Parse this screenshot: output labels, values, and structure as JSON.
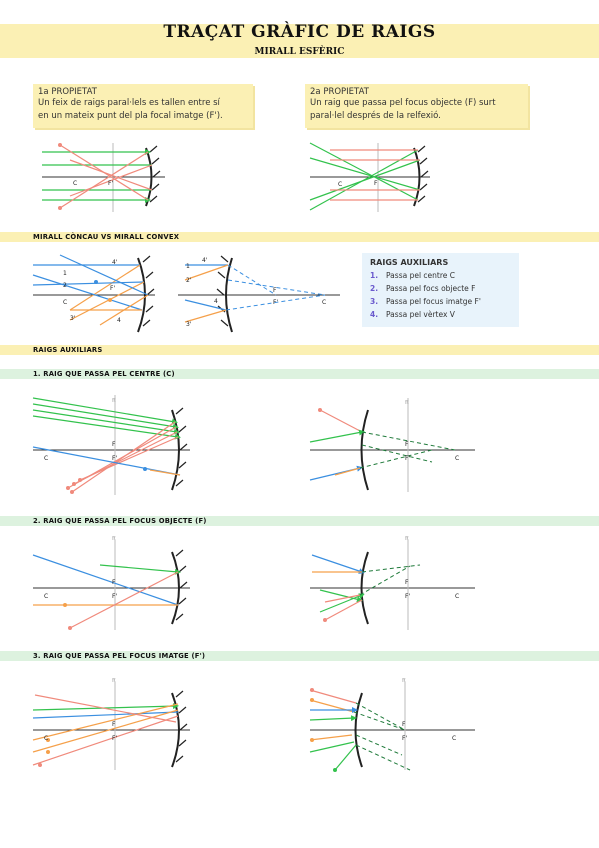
{
  "header": {
    "title": "TRAÇAT GRÀFIC DE RAIGS",
    "subtitle": "MIRALL ESFÈRIC"
  },
  "properties": [
    {
      "heading": "1a PROPIETAT",
      "line1": "Un feix de raigs paral·lels es tallen entre sí",
      "line2": "en un mateix punt del pla focal imatge (F')."
    },
    {
      "heading": "2a PROPIETAT",
      "line1": "Un raig que passa pel focus objecte (F) surt",
      "line2": "paral·lel després de la relfexió."
    }
  ],
  "sections": {
    "concau_convex": "MIRALL CÒNCAU VS MIRALL CONVEX",
    "raigs_auxiliars": "RAIGS AUXILIARS",
    "step1": "1.   RAIG QUE PASSA PEL CENTRE (C)",
    "step2": "2.  RAIG QUE PASSA PEL FOCUS OBJECTE (F)",
    "step3": "3.  RAIG QUE PASSA PEL FOCUS IMATGE (F')"
  },
  "aux_box": {
    "heading": "RAIGS AUXILIARS",
    "items": [
      {
        "num": "1.",
        "text": "Passa pel centre C"
      },
      {
        "num": "2.",
        "text": "Passa pel focs objecte F"
      },
      {
        "num": "3.",
        "text": "Passa pel focus imatge F'"
      },
      {
        "num": "4.",
        "text": "Passa pel vèrtex V"
      }
    ]
  },
  "diagram_labels": {
    "C": "C",
    "F": "F",
    "Fp": "F'",
    "pf": "π",
    "n1": "1",
    "n2": "2",
    "n3": "3",
    "n4": "4",
    "n1p": "1'",
    "n2p": "2'",
    "n3p": "3'",
    "n4p": "4'"
  },
  "colors": {
    "green": "#33c24d",
    "red": "#f08a7c",
    "orange": "#f5a04a",
    "blue": "#3b8fe0",
    "darkgreen": "#1f7a3a",
    "yellow_band": "#fbf0b4",
    "green_band": "#ddf2df",
    "aux_bg": "#e8f3fb"
  }
}
